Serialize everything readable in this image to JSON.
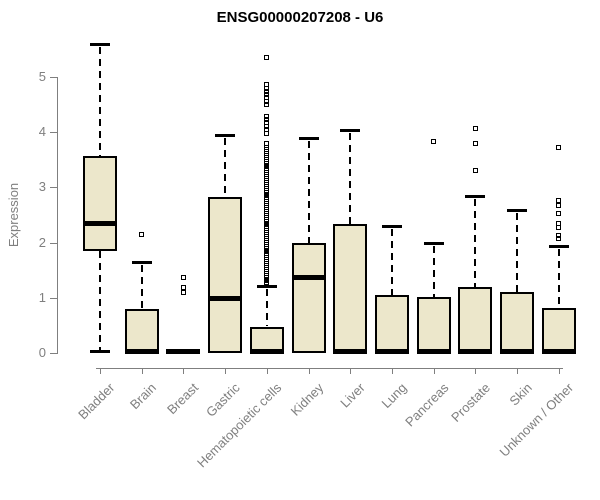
{
  "title": "ENSG00000207208 - U6",
  "colors": {
    "background": "#FFFFFF",
    "box_fill": "#ECE7CB",
    "box_border": "#000000",
    "median": "#000000",
    "axis": "#7F7F7F",
    "tick_text": "#7F7F7F",
    "title_text": "#000000"
  },
  "chart_data": {
    "type": "boxplot",
    "title": "ENSG00000207208 - U6",
    "xlabel": "",
    "ylabel": "Expression",
    "ylim": [
      0,
      5.7
    ],
    "yticks": [
      0,
      1,
      2,
      3,
      4,
      5
    ],
    "grid": false,
    "legend": false,
    "categories": [
      "Bladder",
      "Brain",
      "Breast",
      "Gastric",
      "Hematopoietic cells",
      "Kidney",
      "Liver",
      "Lung",
      "Pancreas",
      "Prostate",
      "Skin",
      "Unknown / Other"
    ],
    "boxes": [
      {
        "category": "Bladder",
        "whisker_low": 0.02,
        "q1": 1.85,
        "median": 2.35,
        "q3": 3.56,
        "whisker_high": 5.6,
        "outliers": []
      },
      {
        "category": "Brain",
        "whisker_low": 0,
        "q1": 0,
        "median": 0.02,
        "q3": 0.8,
        "whisker_high": 1.64,
        "outliers": [
          2.15
        ]
      },
      {
        "category": "Breast",
        "whisker_low": 0,
        "q1": 0,
        "median": 0.02,
        "q3": 0.03,
        "whisker_high": 0.03,
        "collapsed": true,
        "outliers": [
          1.36,
          1.18,
          1.09
        ]
      },
      {
        "category": "Gastric",
        "whisker_low": 0,
        "q1": 0,
        "median": 0.99,
        "q3": 2.82,
        "whisker_high": 3.95,
        "outliers": []
      },
      {
        "category": "Hematopoietic cells",
        "whisker_low": 0,
        "q1": 0,
        "median": 0.02,
        "q3": 0.48,
        "whisker_high": 1.22,
        "outliers": [
          3.8,
          3.98,
          4.04,
          4.1,
          4.17,
          4.23,
          4.29,
          4.5,
          4.56,
          4.62,
          4.68,
          4.74,
          4.8,
          4.86,
          5.35
        ],
        "outlier_band": {
          "min": 1.27,
          "max": 3.73,
          "step": 0.035
        }
      },
      {
        "category": "Kidney",
        "whisker_low": 0,
        "q1": 0,
        "median": 1.37,
        "q3": 2.0,
        "whisker_high": 3.89,
        "outliers": []
      },
      {
        "category": "Liver",
        "whisker_low": 0,
        "q1": 0,
        "median": 0.02,
        "q3": 2.33,
        "whisker_high": 4.04,
        "outliers": []
      },
      {
        "category": "Lung",
        "whisker_low": 0,
        "q1": 0,
        "median": 0.02,
        "q3": 1.05,
        "whisker_high": 2.3,
        "outliers": []
      },
      {
        "category": "Pancreas",
        "whisker_low": 0,
        "q1": 0,
        "median": 0.02,
        "q3": 1.01,
        "whisker_high": 2.0,
        "outliers": [
          3.84
        ]
      },
      {
        "category": "Prostate",
        "whisker_low": 0,
        "q1": 0,
        "median": 0.02,
        "q3": 1.2,
        "whisker_high": 2.84,
        "outliers": [
          4.07,
          3.8,
          3.3
        ]
      },
      {
        "category": "Skin",
        "whisker_low": 0,
        "q1": 0,
        "median": 0.02,
        "q3": 1.1,
        "whisker_high": 2.59,
        "outliers": []
      },
      {
        "category": "Unknown / Other",
        "whisker_low": 0,
        "q1": 0,
        "median": 0.02,
        "q3": 0.81,
        "whisker_high": 1.94,
        "outliers": [
          3.72,
          2.77,
          2.68,
          2.53,
          2.35,
          2.28,
          2.13,
          2.07
        ]
      }
    ]
  }
}
